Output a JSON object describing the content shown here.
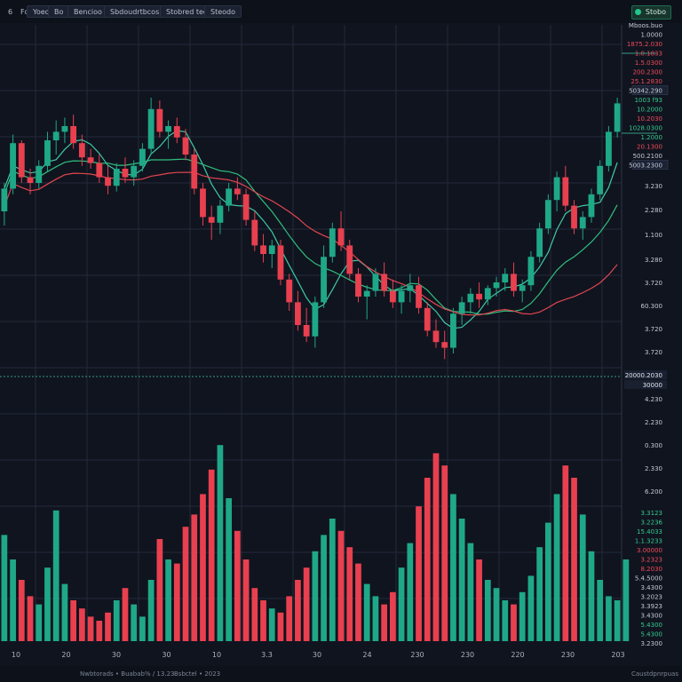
{
  "toolbar": {
    "left_icon": "6",
    "menu_item": "Foe",
    "buttons": [
      "Yoeo",
      "Bo",
      "Bencioo",
      "Sbdoudrtbcos",
      "Stobred teoa",
      "Steodo"
    ],
    "status_label": "Stobo",
    "status_icon": "status-dot-icon"
  },
  "price_labels": [
    {
      "text": "Mboos.buo",
      "kind": "muted"
    },
    {
      "text": "1.0000",
      "kind": "muted"
    },
    {
      "text": "1875.2.030",
      "kind": "red"
    },
    {
      "text": "1.0.1833",
      "kind": "red"
    },
    {
      "text": "1.5.0300",
      "kind": "red"
    },
    {
      "text": "200.2300",
      "kind": "red"
    },
    {
      "text": "25.1.2830",
      "kind": "red"
    },
    {
      "text": "50342.290",
      "kind": "boxed"
    },
    {
      "text": "1003 f93",
      "kind": "green"
    },
    {
      "text": "10.2000",
      "kind": "green"
    },
    {
      "text": "10.2030",
      "kind": "red"
    },
    {
      "text": "1028.0300",
      "kind": "green"
    },
    {
      "text": "1.2000",
      "kind": "green"
    },
    {
      "text": "20.1300",
      "kind": "red"
    },
    {
      "text": "500.2100",
      "kind": "muted"
    },
    {
      "text": "5003.2300",
      "kind": "boxed"
    }
  ],
  "axis_labels": [
    "3.230",
    "2.280",
    "1.100",
    "3.280",
    "3.720",
    "60.300",
    "3.720",
    "3.720",
    "4.230",
    "2.230",
    "0.300",
    "2.330",
    "6.200"
  ],
  "crosshair_labels": [
    "20000.2030",
    "30000"
  ],
  "volume_labels": [
    {
      "text": "3.3123",
      "kind": "green"
    },
    {
      "text": "3.2236",
      "kind": "green"
    },
    {
      "text": "15.4033",
      "kind": "green"
    },
    {
      "text": "1.1.3233",
      "kind": "green"
    },
    {
      "text": "3.00000",
      "kind": "red"
    },
    {
      "text": "3.2323",
      "kind": "red"
    },
    {
      "text": "8.2030",
      "kind": "red"
    },
    {
      "text": "5.4.5000",
      "kind": "muted"
    },
    {
      "text": "3.4300",
      "kind": "muted"
    },
    {
      "text": "3.2023",
      "kind": "muted"
    },
    {
      "text": "3.3923",
      "kind": "muted"
    },
    {
      "text": "3.4300",
      "kind": "muted"
    },
    {
      "text": "5.4300",
      "kind": "green"
    },
    {
      "text": "5.4300",
      "kind": "green"
    },
    {
      "text": "3.2300",
      "kind": "muted"
    }
  ],
  "footer": {
    "left": "Nwbtorads  •  Buabab% / 13.23",
    "middle": "Bsbctel  •  2023",
    "right": "Caustdpnrpuas"
  },
  "colors": {
    "background": "#10141f",
    "grid": "#222a3a",
    "up": "#1fa887",
    "down": "#e8404f",
    "ma_teal": "#3fc9a4",
    "ma_red": "#e04650",
    "ma_green": "#2fbf7d",
    "muted_text": "#aab2bf"
  },
  "chart_data": {
    "type": "candlestick",
    "x_tick_labels": [
      "10",
      "20",
      "30",
      "30",
      "10",
      "3.3",
      "30",
      "24",
      "230",
      "230",
      "220",
      "230",
      "203"
    ],
    "candles": [
      {
        "o": 0.6,
        "h": 0.7,
        "l": 0.55,
        "c": 0.68
      },
      {
        "o": 0.68,
        "h": 0.87,
        "l": 0.66,
        "c": 0.84
      },
      {
        "o": 0.84,
        "h": 0.85,
        "l": 0.7,
        "c": 0.72
      },
      {
        "o": 0.72,
        "h": 0.75,
        "l": 0.66,
        "c": 0.7
      },
      {
        "o": 0.7,
        "h": 0.78,
        "l": 0.68,
        "c": 0.76
      },
      {
        "o": 0.76,
        "h": 0.88,
        "l": 0.74,
        "c": 0.85
      },
      {
        "o": 0.85,
        "h": 0.92,
        "l": 0.8,
        "c": 0.88
      },
      {
        "o": 0.88,
        "h": 0.93,
        "l": 0.84,
        "c": 0.9
      },
      {
        "o": 0.9,
        "h": 0.94,
        "l": 0.82,
        "c": 0.84
      },
      {
        "o": 0.84,
        "h": 0.87,
        "l": 0.76,
        "c": 0.79
      },
      {
        "o": 0.79,
        "h": 0.82,
        "l": 0.75,
        "c": 0.77
      },
      {
        "o": 0.77,
        "h": 0.8,
        "l": 0.7,
        "c": 0.72
      },
      {
        "o": 0.72,
        "h": 0.76,
        "l": 0.66,
        "c": 0.69
      },
      {
        "o": 0.69,
        "h": 0.77,
        "l": 0.67,
        "c": 0.75
      },
      {
        "o": 0.75,
        "h": 0.79,
        "l": 0.7,
        "c": 0.72
      },
      {
        "o": 0.72,
        "h": 0.78,
        "l": 0.69,
        "c": 0.76
      },
      {
        "o": 0.76,
        "h": 0.84,
        "l": 0.74,
        "c": 0.82
      },
      {
        "o": 0.82,
        "h": 1.0,
        "l": 0.8,
        "c": 0.96
      },
      {
        "o": 0.96,
        "h": 0.99,
        "l": 0.86,
        "c": 0.88
      },
      {
        "o": 0.88,
        "h": 0.92,
        "l": 0.82,
        "c": 0.9
      },
      {
        "o": 0.9,
        "h": 0.93,
        "l": 0.84,
        "c": 0.86
      },
      {
        "o": 0.86,
        "h": 0.89,
        "l": 0.78,
        "c": 0.8
      },
      {
        "o": 0.8,
        "h": 0.82,
        "l": 0.66,
        "c": 0.68
      },
      {
        "o": 0.68,
        "h": 0.7,
        "l": 0.55,
        "c": 0.58
      },
      {
        "o": 0.58,
        "h": 0.62,
        "l": 0.5,
        "c": 0.56
      },
      {
        "o": 0.56,
        "h": 0.64,
        "l": 0.52,
        "c": 0.62
      },
      {
        "o": 0.62,
        "h": 0.7,
        "l": 0.6,
        "c": 0.68
      },
      {
        "o": 0.68,
        "h": 0.72,
        "l": 0.64,
        "c": 0.66
      },
      {
        "o": 0.66,
        "h": 0.68,
        "l": 0.55,
        "c": 0.57
      },
      {
        "o": 0.57,
        "h": 0.6,
        "l": 0.46,
        "c": 0.48
      },
      {
        "o": 0.48,
        "h": 0.52,
        "l": 0.42,
        "c": 0.45
      },
      {
        "o": 0.45,
        "h": 0.5,
        "l": 0.4,
        "c": 0.48
      },
      {
        "o": 0.48,
        "h": 0.5,
        "l": 0.34,
        "c": 0.36
      },
      {
        "o": 0.36,
        "h": 0.38,
        "l": 0.25,
        "c": 0.28
      },
      {
        "o": 0.28,
        "h": 0.32,
        "l": 0.18,
        "c": 0.2
      },
      {
        "o": 0.2,
        "h": 0.26,
        "l": 0.14,
        "c": 0.16
      },
      {
        "o": 0.16,
        "h": 0.3,
        "l": 0.12,
        "c": 0.28
      },
      {
        "o": 0.28,
        "h": 0.48,
        "l": 0.26,
        "c": 0.44
      },
      {
        "o": 0.44,
        "h": 0.56,
        "l": 0.42,
        "c": 0.54
      },
      {
        "o": 0.54,
        "h": 0.6,
        "l": 0.46,
        "c": 0.48
      },
      {
        "o": 0.48,
        "h": 0.5,
        "l": 0.36,
        "c": 0.38
      },
      {
        "o": 0.38,
        "h": 0.4,
        "l": 0.28,
        "c": 0.3
      },
      {
        "o": 0.3,
        "h": 0.34,
        "l": 0.22,
        "c": 0.32
      },
      {
        "o": 0.32,
        "h": 0.4,
        "l": 0.3,
        "c": 0.38
      },
      {
        "o": 0.38,
        "h": 0.42,
        "l": 0.3,
        "c": 0.32
      },
      {
        "o": 0.32,
        "h": 0.36,
        "l": 0.26,
        "c": 0.28
      },
      {
        "o": 0.28,
        "h": 0.34,
        "l": 0.24,
        "c": 0.32
      },
      {
        "o": 0.32,
        "h": 0.38,
        "l": 0.28,
        "c": 0.34
      },
      {
        "o": 0.34,
        "h": 0.37,
        "l": 0.24,
        "c": 0.26
      },
      {
        "o": 0.26,
        "h": 0.28,
        "l": 0.16,
        "c": 0.18
      },
      {
        "o": 0.18,
        "h": 0.22,
        "l": 0.12,
        "c": 0.14
      },
      {
        "o": 0.14,
        "h": 0.18,
        "l": 0.08,
        "c": 0.12
      },
      {
        "o": 0.12,
        "h": 0.26,
        "l": 0.1,
        "c": 0.24
      },
      {
        "o": 0.24,
        "h": 0.3,
        "l": 0.2,
        "c": 0.28
      },
      {
        "o": 0.28,
        "h": 0.33,
        "l": 0.24,
        "c": 0.31
      },
      {
        "o": 0.31,
        "h": 0.35,
        "l": 0.26,
        "c": 0.29
      },
      {
        "o": 0.29,
        "h": 0.34,
        "l": 0.27,
        "c": 0.33
      },
      {
        "o": 0.33,
        "h": 0.37,
        "l": 0.3,
        "c": 0.35
      },
      {
        "o": 0.35,
        "h": 0.4,
        "l": 0.32,
        "c": 0.38
      },
      {
        "o": 0.38,
        "h": 0.42,
        "l": 0.3,
        "c": 0.32
      },
      {
        "o": 0.32,
        "h": 0.36,
        "l": 0.28,
        "c": 0.34
      },
      {
        "o": 0.34,
        "h": 0.46,
        "l": 0.32,
        "c": 0.44
      },
      {
        "o": 0.44,
        "h": 0.56,
        "l": 0.42,
        "c": 0.54
      },
      {
        "o": 0.54,
        "h": 0.66,
        "l": 0.52,
        "c": 0.64
      },
      {
        "o": 0.64,
        "h": 0.74,
        "l": 0.6,
        "c": 0.72
      },
      {
        "o": 0.72,
        "h": 0.76,
        "l": 0.6,
        "c": 0.62
      },
      {
        "o": 0.62,
        "h": 0.64,
        "l": 0.52,
        "c": 0.54
      },
      {
        "o": 0.54,
        "h": 0.6,
        "l": 0.5,
        "c": 0.58
      },
      {
        "o": 0.58,
        "h": 0.68,
        "l": 0.56,
        "c": 0.66
      },
      {
        "o": 0.66,
        "h": 0.78,
        "l": 0.64,
        "c": 0.76
      },
      {
        "o": 0.76,
        "h": 0.9,
        "l": 0.74,
        "c": 0.88
      },
      {
        "o": 0.88,
        "h": 1.0,
        "l": 0.86,
        "c": 0.98
      }
    ],
    "volume": [
      0.52,
      0.4,
      0.3,
      0.22,
      0.18,
      0.36,
      0.64,
      0.28,
      0.2,
      0.16,
      0.12,
      0.1,
      0.14,
      0.2,
      0.26,
      0.18,
      0.12,
      0.3,
      0.5,
      0.4,
      0.38,
      0.56,
      0.62,
      0.72,
      0.84,
      0.96,
      0.7,
      0.54,
      0.4,
      0.26,
      0.2,
      0.16,
      0.14,
      0.22,
      0.3,
      0.36,
      0.44,
      0.52,
      0.6,
      0.54,
      0.46,
      0.38,
      0.28,
      0.22,
      0.18,
      0.24,
      0.36,
      0.48,
      0.66,
      0.8,
      0.92,
      0.86,
      0.72,
      0.6,
      0.48,
      0.4,
      0.3,
      0.26,
      0.2,
      0.18,
      0.24,
      0.32,
      0.46,
      0.58,
      0.72,
      0.86,
      0.8,
      0.62,
      0.44,
      0.3,
      0.22,
      0.2,
      0.4
    ]
  }
}
